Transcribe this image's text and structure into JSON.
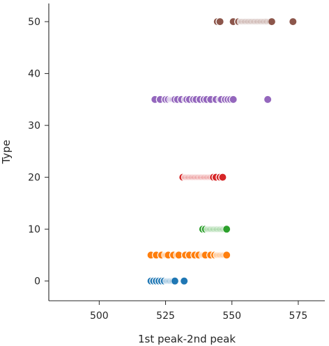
{
  "chart_data": {
    "type": "scatter",
    "title": "",
    "xlabel": "1st peak-2nd peak",
    "ylabel": "Type",
    "xlim": [
      481,
      585
    ],
    "ylim": [
      -3.8,
      53.5
    ],
    "x_ticks": [
      500,
      525,
      550,
      575
    ],
    "y_ticks": [
      0,
      10,
      20,
      30,
      40,
      50
    ],
    "grid": false,
    "series": [
      {
        "y": 0,
        "color": "#1f77b4",
        "x": [
          519.5,
          520.5,
          521.5,
          522.5,
          523.5,
          524.5,
          525.5,
          526,
          526.5,
          527,
          527.5,
          528,
          528.5,
          532
        ]
      },
      {
        "y": 5,
        "color": "#ff7f0e",
        "x": [
          519.5,
          521.5,
          523.5,
          525,
          525.5,
          526,
          528,
          529.5,
          530,
          532.5,
          534,
          536,
          537.5,
          539,
          539.5,
          540,
          542,
          543.5,
          544.5,
          545,
          545.5,
          546,
          546.5,
          547,
          547.5,
          548
        ]
      },
      {
        "y": 10,
        "color": "#2ca02c",
        "x": [
          539,
          540,
          541,
          541.5,
          542,
          542.5,
          543,
          543.5,
          544,
          544.5,
          545,
          545.5,
          546,
          546.5,
          547,
          547.5,
          548
        ]
      },
      {
        "y": 20,
        "color": "#d62728",
        "x": [
          531.5,
          532.5,
          533,
          533.5,
          534,
          534.5,
          535,
          535.5,
          536,
          536.5,
          537,
          537.5,
          538,
          538.5,
          539,
          539.5,
          540,
          540.5,
          541,
          541.5,
          542,
          542.5,
          543,
          544,
          545.5,
          546.5
        ]
      },
      {
        "y": 35,
        "color": "#9467bd",
        "x": [
          521,
          523,
          525,
          526,
          527,
          527.5,
          528,
          528.5,
          529.5,
          531,
          532.5,
          533,
          534,
          535.5,
          536.5,
          538,
          539.5,
          540.5,
          542,
          544,
          545.5,
          546,
          547.5,
          548.5,
          549.5,
          550.5,
          563.5
        ]
      },
      {
        "y": 50,
        "color": "#8c564b",
        "x": [
          544.5,
          545.5,
          550.5,
          552.5,
          553.5,
          554,
          554.5,
          555,
          555.5,
          556,
          556.5,
          557,
          557.5,
          558,
          558.5,
          559,
          559.5,
          560,
          560.5,
          561,
          561.5,
          562,
          562.5,
          563,
          563.5,
          564,
          564.5,
          565,
          573
        ]
      }
    ]
  }
}
